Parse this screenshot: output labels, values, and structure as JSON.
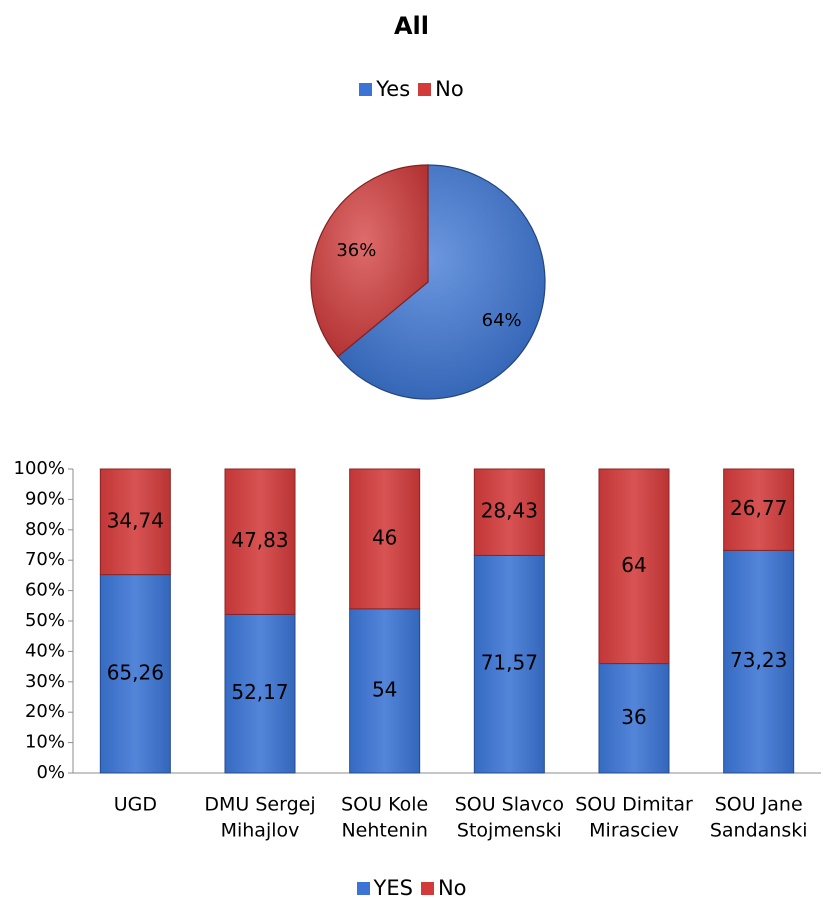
{
  "chart_data": [
    {
      "type": "pie",
      "title": "All",
      "legend": [
        "Yes",
        "No"
      ],
      "legend_position": "top",
      "slices": [
        {
          "name": "Yes",
          "value": 64,
          "label": "64%"
        },
        {
          "name": "No",
          "value": 36,
          "label": "36%"
        }
      ],
      "colors": {
        "Yes": "#3b74d4",
        "No": "#d33b3b"
      }
    },
    {
      "type": "bar",
      "stacked": true,
      "percent_stacked": true,
      "categories": [
        [
          "UGD"
        ],
        [
          "DMU Sergej",
          "Mihajlov"
        ],
        [
          "SOU Kole",
          "Nehtenin"
        ],
        [
          "SOU Slavco",
          "Stojmenski"
        ],
        [
          "SOU Dimitar",
          "Mirasciev"
        ],
        [
          "SOU Jane",
          "Sandanski"
        ]
      ],
      "series": [
        {
          "name": "YES",
          "values": [
            65.26,
            52.17,
            54,
            71.57,
            36,
            73.23
          ],
          "labels": [
            "65,26",
            "52,17",
            "54",
            "71,57",
            "36",
            "73,23"
          ]
        },
        {
          "name": "No",
          "values": [
            34.74,
            47.83,
            46,
            28.43,
            64,
            26.77
          ],
          "labels": [
            "34,74",
            "47,83",
            "46",
            "28,43",
            "64",
            "26,77"
          ]
        }
      ],
      "yticks": [
        "0%",
        "10%",
        "20%",
        "30%",
        "40%",
        "50%",
        "60%",
        "70%",
        "80%",
        "90%",
        "100%"
      ],
      "ylim": [
        0,
        100
      ],
      "legend_position": "bottom",
      "colors": {
        "YES": "#3b74d4",
        "No": "#d33b3b"
      }
    }
  ]
}
